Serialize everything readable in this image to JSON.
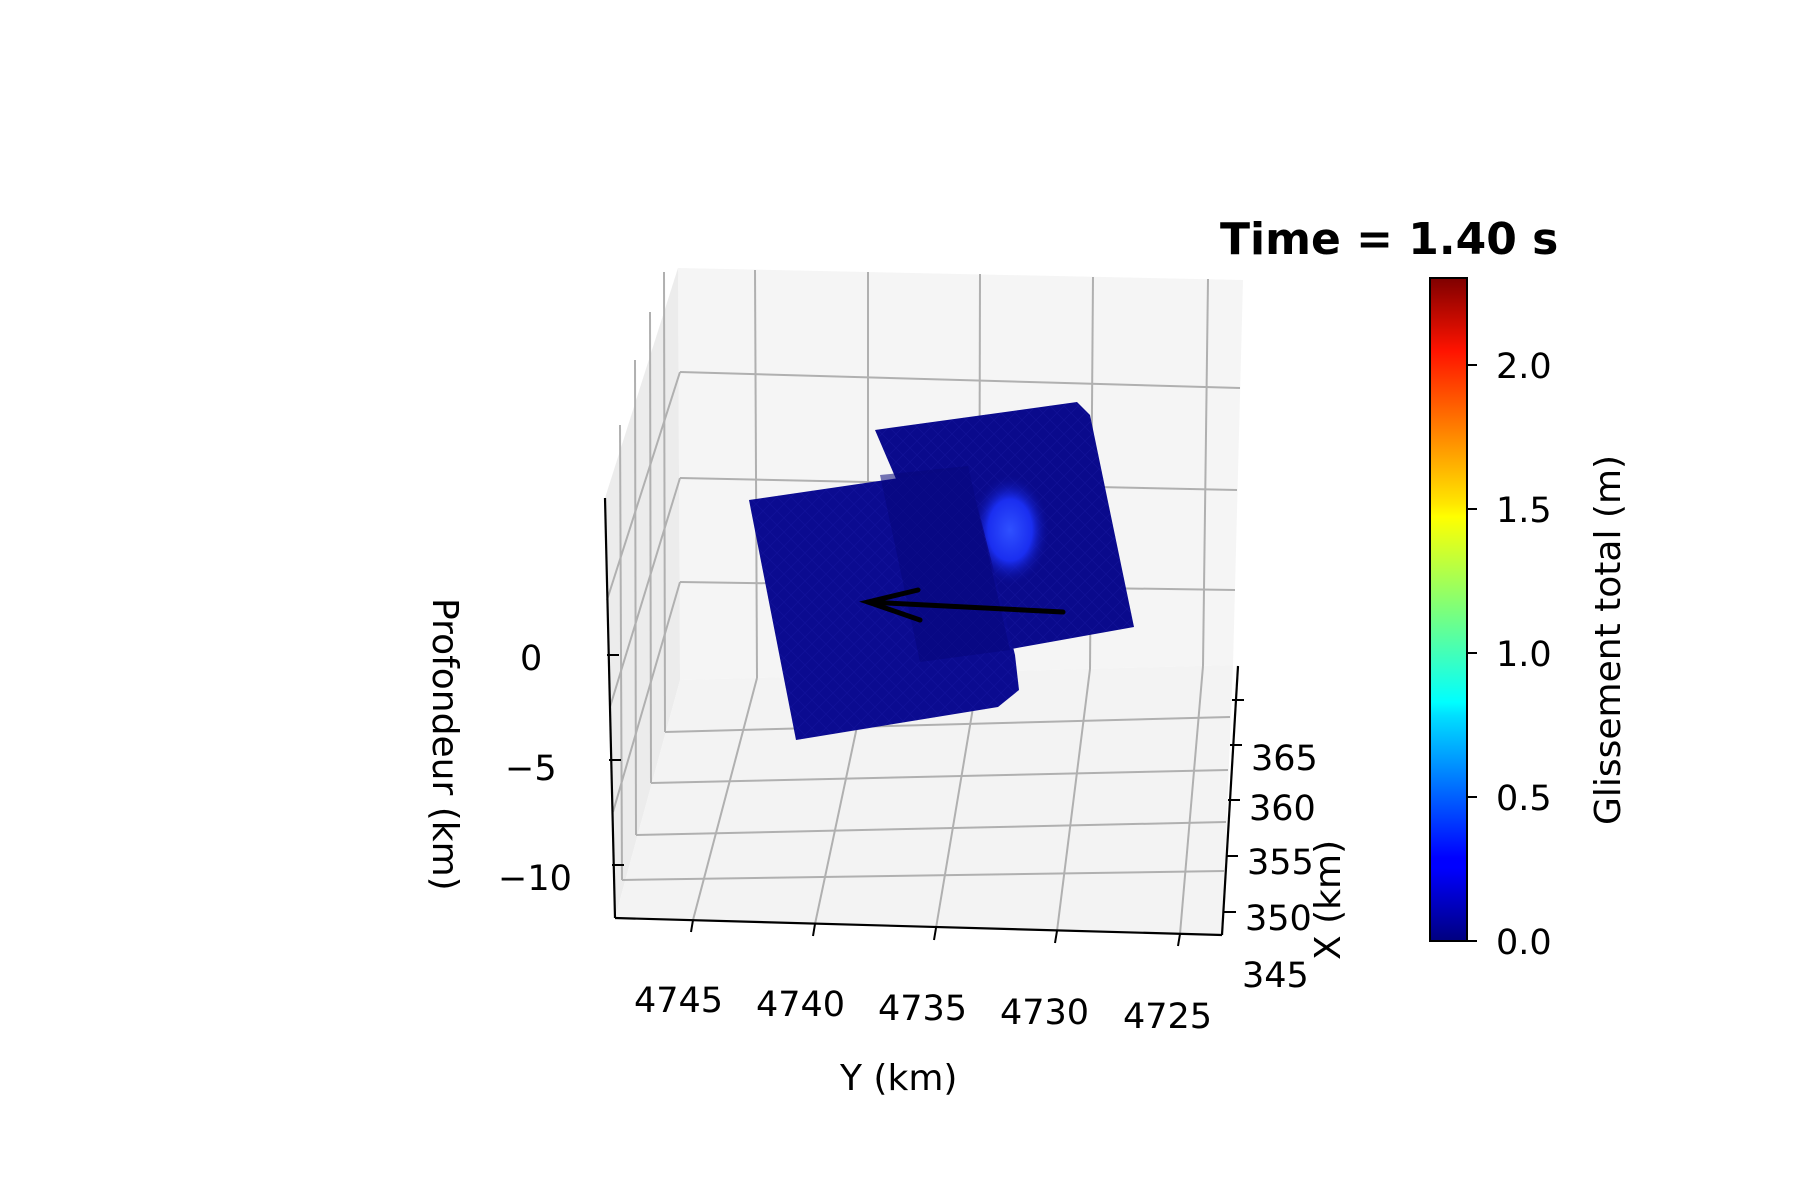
{
  "chart_data": {
    "type": "surface3d",
    "title": "Time = 1.40 s",
    "xlabel": "Y (km)",
    "ylabel": "X (km)",
    "zlabel": "Profondeur (km)",
    "y_axis_ticks": [
      "4745",
      "4740",
      "4735",
      "4730",
      "4725"
    ],
    "x_axis_ticks": [
      "345",
      "350",
      "355",
      "360",
      "365"
    ],
    "z_axis_ticks": [
      "0",
      "−5",
      "−10"
    ],
    "grid": true,
    "colorbar": {
      "label": "Glissement total (m)",
      "colormap": "jet",
      "min": 0.0,
      "max": 2.3,
      "ticks": [
        "0.0",
        "0.5",
        "1.0",
        "1.5",
        "2.0"
      ]
    },
    "slip_peak_m": 0.5,
    "fault_color": "#0a0a8c",
    "slip_patch_color": "#2a3cff",
    "arrow_color": "#000000",
    "pane_color": "#f2f2f2",
    "grid_color": "#b0b0b0"
  }
}
